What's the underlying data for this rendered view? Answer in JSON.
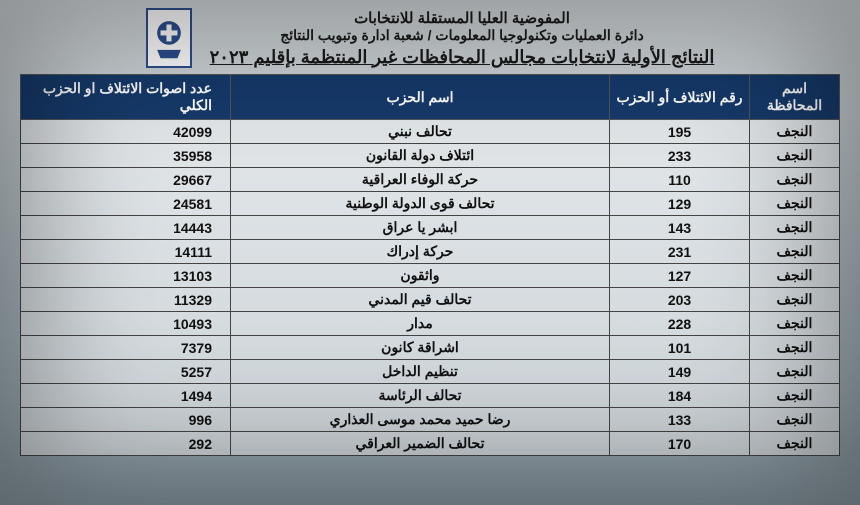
{
  "header": {
    "line1": "المفوضية العليا المستقلة للانتخابات",
    "line2": "دائرة العمليات وتكنولوجيا المعلومات / شعبة ادارة وتبويب النتائج",
    "line3": "النتائج الأولية لانتخابات مجالس المحافظات غير المنتظمة بإقليم ٢٠٢٣"
  },
  "columns": {
    "governorate": "اسم المحافظة",
    "coalition_num": "رقم الائتلاف أو الحزب",
    "party_name": "اسم الحزب",
    "votes": "عدد اصوات الائتلاف او الحزب الكلي"
  },
  "rows": [
    {
      "gov": "النجف",
      "num": "195",
      "party": "تحالف نبني",
      "votes": "42099"
    },
    {
      "gov": "النجف",
      "num": "233",
      "party": "ائتلاف دولة القانون",
      "votes": "35958"
    },
    {
      "gov": "النجف",
      "num": "110",
      "party": "حركة الوفاء العراقية",
      "votes": "29667"
    },
    {
      "gov": "النجف",
      "num": "129",
      "party": "تحالف قوى الدولة الوطنية",
      "votes": "24581"
    },
    {
      "gov": "النجف",
      "num": "143",
      "party": "ابشر يا عراق",
      "votes": "14443"
    },
    {
      "gov": "النجف",
      "num": "231",
      "party": "حركة إدراك",
      "votes": "14111"
    },
    {
      "gov": "النجف",
      "num": "127",
      "party": "واثقون",
      "votes": "13103"
    },
    {
      "gov": "النجف",
      "num": "203",
      "party": "تحالف قيم المدني",
      "votes": "11329"
    },
    {
      "gov": "النجف",
      "num": "228",
      "party": "مدار",
      "votes": "10493"
    },
    {
      "gov": "النجف",
      "num": "101",
      "party": "اشراقة كانون",
      "votes": "7379"
    },
    {
      "gov": "النجف",
      "num": "149",
      "party": "تنظيم الداخل",
      "votes": "5257"
    },
    {
      "gov": "النجف",
      "num": "184",
      "party": "تحالف الرئاسة",
      "votes": "1494"
    },
    {
      "gov": "النجف",
      "num": "133",
      "party": "رضا حميد محمد موسى العذاري",
      "votes": "996"
    },
    {
      "gov": "النجف",
      "num": "170",
      "party": "تحالف الضمير العراقي",
      "votes": "292"
    }
  ],
  "style": {
    "header_bg": "#163a6b",
    "header_fg": "#ffffff",
    "border_color": "#444444",
    "body_bg_top": "#d8dde0",
    "body_bg_bottom": "#8a9aa3",
    "text_color": "#111111",
    "title_fontsize_pt": 14,
    "cell_fontsize_pt": 11
  }
}
